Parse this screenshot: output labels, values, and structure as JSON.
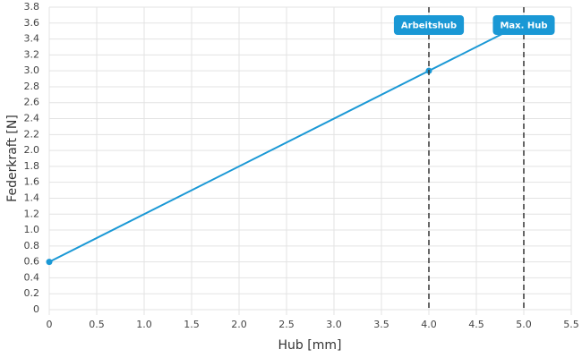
{
  "chart_data": {
    "type": "line",
    "x": [
      0,
      4,
      5
    ],
    "values": [
      0.6,
      3.0,
      3.6
    ],
    "color": "#1a98d5",
    "xlabel": "Hub [mm]",
    "ylabel": "Federkraft [N]",
    "xlim": [
      0,
      5.5
    ],
    "ylim": [
      0,
      3.8
    ],
    "grid": true,
    "xticks": [
      0,
      0.5,
      {
        "value": 1,
        "label": "1.0"
      },
      1.5,
      {
        "value": 2,
        "label": "2.0"
      },
      2.5,
      {
        "value": 3,
        "label": "3.0"
      },
      3.5,
      {
        "value": 4,
        "label": "4.0"
      },
      4.5,
      {
        "value": 5,
        "label": "5.0"
      },
      5.5
    ],
    "yticks": [
      0,
      0.2,
      0.4,
      0.6,
      0.8,
      {
        "value": 1,
        "label": "1.0"
      },
      1.2,
      1.4,
      1.6,
      1.8,
      {
        "value": 2,
        "label": "2.0"
      },
      2.2,
      2.4,
      2.6,
      2.8,
      {
        "value": 3,
        "label": "3.0"
      },
      3.2,
      3.4,
      3.6,
      3.8
    ],
    "annotations": [
      {
        "x": 4,
        "label": "Arbeitshub"
      },
      {
        "x": 5,
        "label": "Max. Hub"
      }
    ]
  }
}
